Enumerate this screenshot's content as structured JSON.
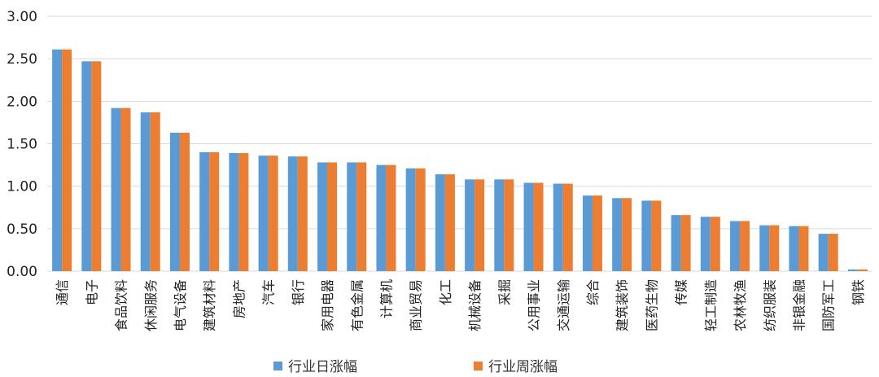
{
  "chart_data": {
    "type": "bar",
    "categories": [
      "通信",
      "电子",
      "食品饮料",
      "休闲服务",
      "电气设备",
      "建筑材料",
      "房地产",
      "汽车",
      "银行",
      "家用电器",
      "有色金属",
      "计算机",
      "商业贸易",
      "化工",
      "机械设备",
      "采掘",
      "公用事业",
      "交通运输",
      "综合",
      "建筑装饰",
      "医药生物",
      "传媒",
      "轻工制造",
      "农林牧渔",
      "纺织服装",
      "非银金融",
      "国防军工",
      "钢铁"
    ],
    "series": [
      {
        "name": "行业日涨幅",
        "color": "#5B9BD5",
        "values": [
          2.61,
          2.47,
          1.92,
          1.87,
          1.63,
          1.4,
          1.39,
          1.36,
          1.35,
          1.28,
          1.28,
          1.25,
          1.21,
          1.14,
          1.08,
          1.08,
          1.04,
          1.03,
          0.89,
          0.86,
          0.83,
          0.66,
          0.64,
          0.59,
          0.54,
          0.53,
          0.44,
          0.02
        ]
      },
      {
        "name": "行业周涨幅",
        "color": "#ED7D31",
        "values": [
          2.61,
          2.47,
          1.92,
          1.87,
          1.63,
          1.4,
          1.39,
          1.36,
          1.35,
          1.28,
          1.28,
          1.25,
          1.21,
          1.14,
          1.08,
          1.08,
          1.04,
          1.03,
          0.89,
          0.86,
          0.83,
          0.66,
          0.64,
          0.59,
          0.54,
          0.53,
          0.44,
          0.02
        ]
      }
    ],
    "yticks": [
      "0.00",
      "0.50",
      "1.00",
      "1.50",
      "2.00",
      "2.50",
      "3.00"
    ],
    "ylim": [
      0,
      3
    ],
    "grid": true,
    "legend": "bottom-center"
  }
}
